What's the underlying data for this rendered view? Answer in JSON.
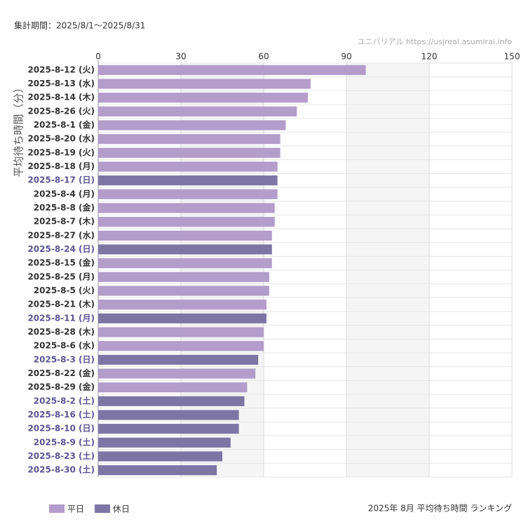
{
  "chart_data": {
    "type": "bar",
    "orientation": "horizontal",
    "period": "集計期間：2025/8/1～2025/8/31",
    "source": "ユニバリアル https://usjreal.asumirai.info",
    "title": "2025年 8月 平均待ち時間 ランキング",
    "y_label": "平均待ち時間（分）",
    "categories": [
      "2025-8-12 (火)",
      "2025-8-13 (水)",
      "2025-8-14 (木)",
      "2025-8-26 (火)",
      "2025-8-1 (金)",
      "2025-8-20 (水)",
      "2025-8-19 (火)",
      "2025-8-18 (月)",
      "2025-8-17 (日)",
      "2025-8-4 (月)",
      "2025-8-8 (金)",
      "2025-8-7 (木)",
      "2025-8-27 (水)",
      "2025-8-24 (日)",
      "2025-8-15 (金)",
      "2025-8-25 (月)",
      "2025-8-5 (火)",
      "2025-8-21 (木)",
      "2025-8-11 (月)",
      "2025-8-28 (木)",
      "2025-8-6 (水)",
      "2025-8-3 (日)",
      "2025-8-22 (金)",
      "2025-8-29 (金)",
      "2025-8-2 (土)",
      "2025-8-16 (土)",
      "2025-8-10 (日)",
      "2025-8-9 (土)",
      "2025-8-23 (土)",
      "2025-8-30 (土)"
    ],
    "series": [
      {
        "name": "平日",
        "color": "#b39dcb",
        "values": [
          97,
          77,
          76,
          72,
          68,
          66,
          66,
          65,
          null,
          65,
          64,
          64,
          63,
          null,
          63,
          62,
          62,
          61,
          null,
          60,
          60,
          null,
          57,
          54,
          null,
          null,
          null,
          null,
          null,
          null
        ]
      },
      {
        "name": "休日",
        "color": "#7d76a5",
        "values": [
          null,
          null,
          null,
          null,
          null,
          null,
          null,
          null,
          65,
          null,
          null,
          null,
          null,
          63,
          null,
          null,
          null,
          null,
          61,
          null,
          null,
          58,
          null,
          null,
          53,
          51,
          51,
          48,
          45,
          43
        ]
      }
    ],
    "xlim": [
      0,
      150
    ],
    "xticks": [
      0,
      30,
      60,
      90,
      120,
      150
    ],
    "grid": true
  }
}
